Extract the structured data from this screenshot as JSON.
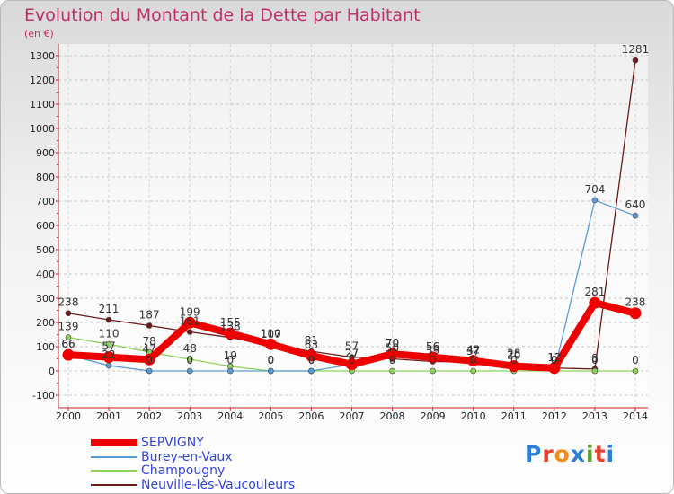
{
  "title": "Evolution du Montant de la Dette par Habitant",
  "unit_label": "(en €)",
  "logo": {
    "text": "Proxiti",
    "letter_colors": [
      "#2b7fd4",
      "#e8402a",
      "#f08c1a",
      "#2b7fd4",
      "#5aa02c",
      "#e8402a",
      "#2b7fd4"
    ]
  },
  "chart_data": {
    "type": "line",
    "x": [
      2000,
      2001,
      2002,
      2003,
      2004,
      2005,
      2006,
      2007,
      2008,
      2009,
      2010,
      2011,
      2012,
      2013,
      2014
    ],
    "ylim": [
      -100,
      1300
    ],
    "yticks": [
      -100,
      0,
      100,
      200,
      300,
      400,
      500,
      600,
      700,
      800,
      900,
      1000,
      1100,
      1200,
      1300
    ],
    "grid": "horizontal dashed",
    "series": [
      {
        "name": "Neuville-lès-Vaucouleurs",
        "color": "#6b1a1a",
        "values": [
          238,
          211,
          187,
          161,
          138,
          107,
          81,
          57,
          50,
          39,
          37,
          28,
          12,
          8,
          1281
        ],
        "labels": [
          "238",
          "211",
          "187",
          "161",
          "138",
          "107",
          "81",
          "57",
          "50",
          "39",
          "37",
          "28",
          "12",
          "8",
          "1281"
        ]
      },
      {
        "name": "Champougny",
        "color": "#8ed15a",
        "values": [
          139,
          110,
          78,
          48,
          19,
          0,
          0,
          0,
          0,
          0,
          0,
          0,
          0,
          0,
          0
        ],
        "labels": [
          "139",
          "110",
          "78",
          "48",
          "19",
          "0",
          "0",
          "0",
          "0",
          "0",
          "0",
          "0",
          "0",
          "0",
          "0"
        ]
      },
      {
        "name": "Burey-en-Vaux",
        "color": "#5b9bd5",
        "values": [
          66,
          22,
          0,
          0,
          0,
          0,
          0,
          27,
          70,
          56,
          42,
          20,
          0,
          704,
          640
        ],
        "labels": [
          "66",
          "22",
          "0",
          "0",
          "0",
          "0",
          "0",
          "27",
          "70",
          "56",
          "42",
          "20",
          "0",
          "704",
          "640"
        ]
      },
      {
        "name": "SEPVIGNY",
        "color": "#ee0000",
        "values": [
          66,
          57,
          47,
          199,
          155,
          110,
          63,
          27,
          70,
          56,
          42,
          20,
          12,
          281,
          238
        ],
        "labels": [
          "66",
          "57",
          "47",
          "199",
          "155",
          "110",
          "63",
          "27",
          "70",
          "56",
          "42",
          "20",
          "12",
          "281",
          "238"
        ]
      }
    ],
    "legend": [
      "SEPVIGNY",
      "Burey-en-Vaux",
      "Champougny",
      "Neuville-lès-Vaucouleurs"
    ],
    "legend_position": "bottom-left"
  }
}
